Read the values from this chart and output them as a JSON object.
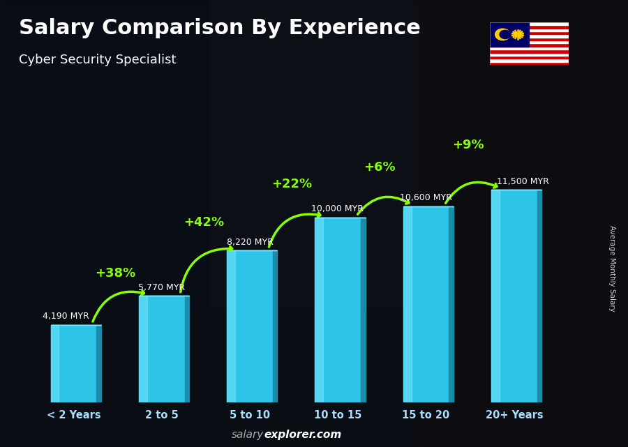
{
  "title": "Salary Comparison By Experience",
  "subtitle": "Cyber Security Specialist",
  "categories": [
    "< 2 Years",
    "2 to 5",
    "5 to 10",
    "10 to 15",
    "15 to 20",
    "20+ Years"
  ],
  "values": [
    4190,
    5770,
    8220,
    10000,
    10600,
    11500
  ],
  "labels": [
    "4,190 MYR",
    "5,770 MYR",
    "8,220 MYR",
    "10,000 MYR",
    "10,600 MYR",
    "11,500 MYR"
  ],
  "label_side": [
    "left",
    "right",
    "right",
    "left",
    "left",
    "right"
  ],
  "pct_labels": [
    "+38%",
    "+42%",
    "+22%",
    "+6%",
    "+9%"
  ],
  "bar_front": "#2ec4e8",
  "bar_left": "#5cddf5",
  "bar_right": "#1a8caa",
  "bar_top": "#7aeeff",
  "bg_color": "#1a1a1a",
  "title_color": "#ffffff",
  "subtitle_color": "#ffffff",
  "label_color": "#ffffff",
  "pct_color": "#88ff00",
  "xtick_color": "#aaddff",
  "ylabel_text": "Average Monthly Salary",
  "footer_salary": "salary",
  "footer_explorer": "explorer.com",
  "ylim": [
    0,
    14500
  ]
}
